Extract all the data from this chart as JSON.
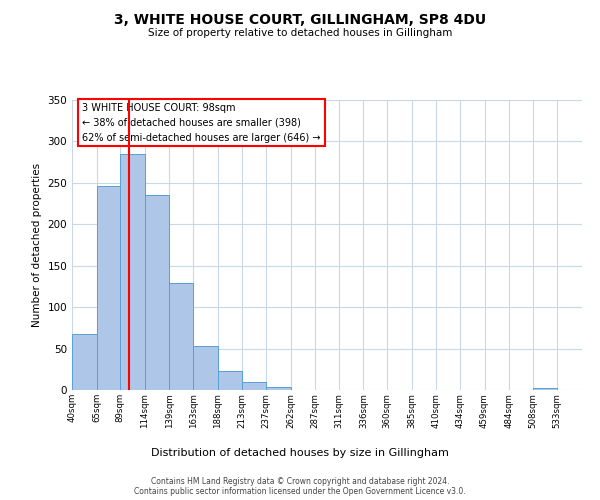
{
  "title": "3, WHITE HOUSE COURT, GILLINGHAM, SP8 4DU",
  "subtitle": "Size of property relative to detached houses in Gillingham",
  "xlabel": "Distribution of detached houses by size in Gillingham",
  "ylabel": "Number of detached properties",
  "bar_labels": [
    "40sqm",
    "65sqm",
    "89sqm",
    "114sqm",
    "139sqm",
    "163sqm",
    "188sqm",
    "213sqm",
    "237sqm",
    "262sqm",
    "287sqm",
    "311sqm",
    "336sqm",
    "360sqm",
    "385sqm",
    "410sqm",
    "434sqm",
    "459sqm",
    "484sqm",
    "508sqm",
    "533sqm"
  ],
  "bar_values": [
    68,
    246,
    285,
    235,
    129,
    53,
    23,
    10,
    4,
    0,
    0,
    0,
    0,
    0,
    0,
    0,
    0,
    0,
    0,
    2,
    0
  ],
  "bar_color": "#aec6e8",
  "bar_edge_color": "#5a9fd4",
  "ylim": [
    0,
    350
  ],
  "yticks": [
    0,
    50,
    100,
    150,
    200,
    250,
    300,
    350
  ],
  "property_line_x": 98,
  "property_line_color": "red",
  "annotation_title": "3 WHITE HOUSE COURT: 98sqm",
  "annotation_line1": "← 38% of detached houses are smaller (398)",
  "annotation_line2": "62% of semi-detached houses are larger (646) →",
  "annotation_box_color": "red",
  "footer1": "Contains HM Land Registry data © Crown copyright and database right 2024.",
  "footer2": "Contains public sector information licensed under the Open Government Licence v3.0.",
  "background_color": "#ffffff",
  "grid_color": "#c8d8e8",
  "bin_edges": [
    40,
    65,
    89,
    114,
    139,
    163,
    188,
    213,
    237,
    262,
    287,
    311,
    336,
    360,
    385,
    410,
    434,
    459,
    484,
    508,
    533,
    558
  ]
}
